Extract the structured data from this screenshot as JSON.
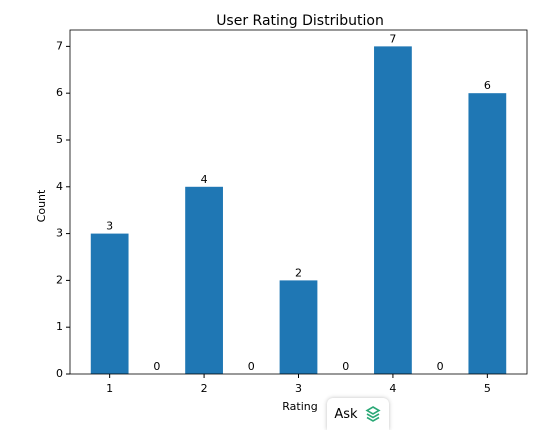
{
  "chart_data": {
    "type": "bar",
    "title": "User Rating Distribution",
    "xlabel": "Rating",
    "ylabel": "Count",
    "x": [
      1,
      1.5,
      2,
      2.5,
      3,
      3.5,
      4,
      4.5,
      5
    ],
    "values": [
      3,
      0,
      4,
      0,
      2,
      0,
      7,
      0,
      6
    ],
    "bar_width": 0.4,
    "color": "#1f77b4",
    "xlim": [
      0.58,
      5.42
    ],
    "xticks": [
      1,
      2,
      3,
      4,
      5
    ],
    "ylim": [
      0,
      7.35
    ],
    "yticks": [
      0,
      1,
      2,
      3,
      4,
      5,
      6,
      7
    ]
  },
  "overlay": {
    "button": "Ask"
  }
}
